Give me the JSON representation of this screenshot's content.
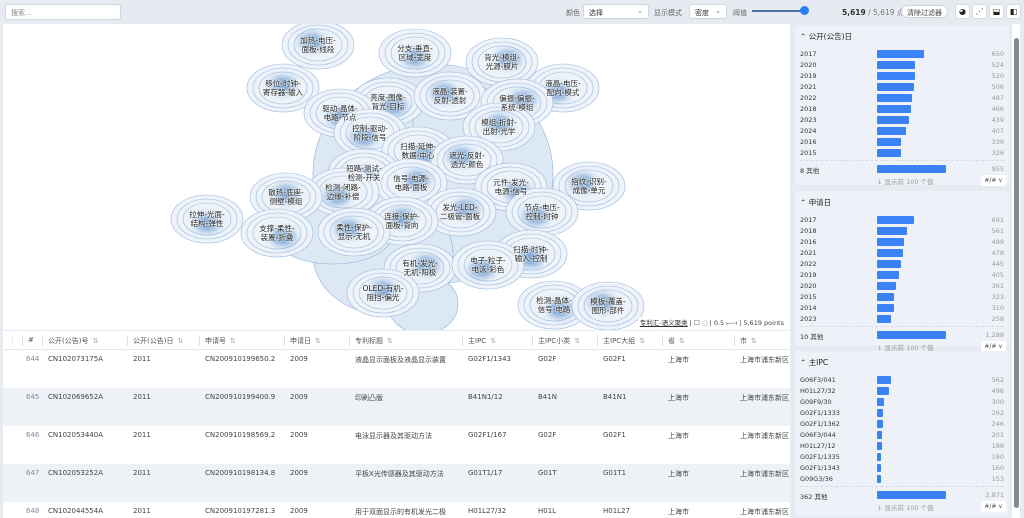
{
  "topbar": {
    "search_placeholder": "搜索...",
    "color_label": "颜色",
    "color_value": "选择",
    "mode_label": "显示模式",
    "mode_value": "密度",
    "threshold_label": "阈值",
    "threshold_value": 1.0,
    "count_shown": "5,619",
    "count_total": "/ 5,619 点",
    "clear_filters": "清除过滤器",
    "icons": [
      "theme-icon",
      "scatter-icon",
      "layout-bottom-icon",
      "layout-side-icon"
    ]
  },
  "map": {
    "labels": [
      "加热-电压-\n面板-线段",
      "分支-垂直-\n区域-宽度",
      "背光-模组-\n光源-膜片",
      "液晶-电压-\n配向-模式",
      "移位-时钟-\n寄存器-输入",
      "亮度-图像-\n背光-目标",
      "液晶-装置-\n反射-透射",
      "驱动-晶体-\n电路-节点",
      "偏振-偏振-\n系统-模组",
      "控制-驱动-\n阶段-信号",
      "模组-折射-\n出射-光学",
      "扫描-延伸-\n数据-中心",
      "遮光-反射-\n透光-颜色",
      "短路-测试-\n检测-开关",
      "信号-电源-\n电路-面板",
      "检测-闭路-\n边缘-补偿",
      "散热-底座-\n侧壁-模组",
      "元件-发光-\n电源-信号",
      "指纹-识别-\n成像-单元",
      "拉伸-光面-\n结构-弹性",
      "发光-LED-\n二极管-面板",
      "节点-电压-\n控制-时钟",
      "连接-保护-\n面板-背向",
      "支撑-柔性-\n装置-折叠",
      "柔性-保护-\n显示-无机",
      "扫描-时钟-\n输入-控制",
      "有机-发光-\n无机-阳极",
      "电子-粒子-\n电泳-彩色",
      "OLED-有机-\n阻挡-偏光",
      "检测-晶体-\n信号-电路",
      "模板-覆盖-\n图形-部件"
    ],
    "attribution": "专利汇-语义聚类",
    "scale": "0.5",
    "points": "5,619 points"
  },
  "table": {
    "columns": [
      "#",
      "公开(公告)号",
      "公开(公告)日",
      "申请号",
      "申请日",
      "专利标题",
      "主IPC",
      "主IPC小类",
      "主IPC大组",
      "省",
      "市"
    ],
    "rows": [
      [
        "644",
        "CN102073175A",
        "2011",
        "CN200910199650.2",
        "2009",
        "液晶显示面板及液晶显示装置",
        "G02F1/1343",
        "G02F",
        "G02F1",
        "上海市",
        "上海市浦东新区"
      ],
      [
        "645",
        "CN102069652A",
        "2011",
        "CN200910199400.9",
        "2009",
        "印刷凸版",
        "B41N1/12",
        "B41N",
        "B41N1",
        "上海市",
        "上海市浦东新区"
      ],
      [
        "646",
        "CN102053440A",
        "2011",
        "CN200910198569.2",
        "2009",
        "电泳显示器及其驱动方法",
        "G02F1/167",
        "G02F",
        "G02F1",
        "上海市",
        "上海市浦东新区"
      ],
      [
        "647",
        "CN102053252A",
        "2011",
        "CN200910198134.8",
        "2009",
        "平板X光传感器及其驱动方法",
        "G01T1/17",
        "G01T",
        "G01T1",
        "上海市",
        "上海市浦东新区"
      ],
      [
        "648",
        "CN102044554A",
        "2011",
        "CN200910197281.3",
        "2009",
        "用于双面显示的有机发光二极",
        "H01L27/32",
        "H01L",
        "H01L27",
        "上海市",
        "上海市浦东新区"
      ]
    ]
  },
  "panels": [
    {
      "title": "公开(公告)日",
      "items": [
        [
          "2017",
          650
        ],
        [
          "2020",
          524
        ],
        [
          "2019",
          520
        ],
        [
          "2021",
          506
        ],
        [
          "2022",
          487
        ],
        [
          "2018",
          466
        ],
        [
          "2023",
          439
        ],
        [
          "2024",
          407
        ],
        [
          "2016",
          339
        ],
        [
          "2015",
          326
        ]
      ],
      "other_label": "8 其他",
      "other_value": 955,
      "other_display": "955",
      "footer": "↓ 显示前 100 个值",
      "format": "#/# ∨"
    },
    {
      "title": "申请日",
      "items": [
        [
          "2017",
          691
        ],
        [
          "2018",
          561
        ],
        [
          "2016",
          499
        ],
        [
          "2021",
          478
        ],
        [
          "2022",
          445
        ],
        [
          "2019",
          405
        ],
        [
          "2020",
          361
        ],
        [
          "2015",
          323
        ],
        [
          "2014",
          310
        ],
        [
          "2023",
          258
        ]
      ],
      "other_label": "10 其他",
      "other_value": 1288,
      "other_display": "1,288",
      "footer": "↓ 显示前 100 个值",
      "format": "#/# ∨"
    },
    {
      "title": "主IPC",
      "items": [
        [
          "G06F3/041",
          562
        ],
        [
          "H01L27/32",
          496
        ],
        [
          "G09F9/30",
          300
        ],
        [
          "G02F1/1333",
          262
        ],
        [
          "G02F1/1362",
          246
        ],
        [
          "G06F3/044",
          201
        ],
        [
          "H01L27/12",
          188
        ],
        [
          "G02F1/1335",
          180
        ],
        [
          "G02F1/1343",
          160
        ],
        [
          "G09G3/36",
          153
        ]
      ],
      "other_label": "362 其他",
      "other_value": 2871,
      "other_display": "2,871",
      "footer": "↓ 显示前 100 个值",
      "format": "#/# ∨"
    }
  ],
  "colors": {
    "accent": "#3b82f6",
    "density": "#1f5fa8"
  }
}
